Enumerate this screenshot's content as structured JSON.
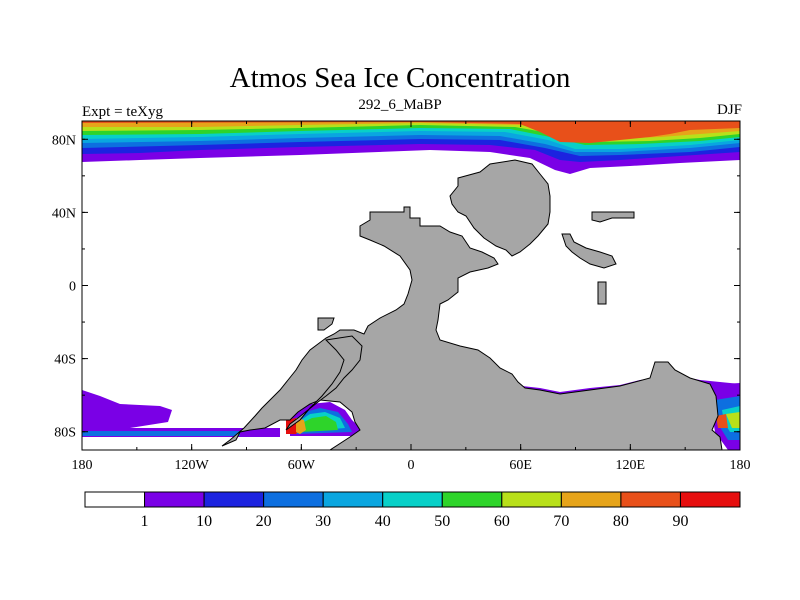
{
  "title": "Atmos Sea Ice Concentration",
  "subtitle": "292_6_MaBP",
  "left_label": "Expt = teXyg",
  "right_label": "DJF",
  "colors": {
    "land": "#a6a6a6",
    "ocean": "#ffffff"
  },
  "axes": {
    "x_ticks": [
      {
        "value": -180,
        "label": "180"
      },
      {
        "value": -120,
        "label": "120W"
      },
      {
        "value": -60,
        "label": "60W"
      },
      {
        "value": 0,
        "label": "0"
      },
      {
        "value": 60,
        "label": "60E"
      },
      {
        "value": 120,
        "label": "120E"
      },
      {
        "value": 180,
        "label": "180"
      }
    ],
    "y_ticks": [
      {
        "value": 80,
        "label": "80N"
      },
      {
        "value": 40,
        "label": "40N"
      },
      {
        "value": 0,
        "label": "0"
      },
      {
        "value": -40,
        "label": "40S"
      },
      {
        "value": -80,
        "label": "80S"
      }
    ],
    "xlim": [
      -180,
      180
    ],
    "ylim": [
      -90,
      90
    ]
  },
  "colorbar": {
    "labels": [
      "1",
      "10",
      "20",
      "30",
      "40",
      "50",
      "60",
      "70",
      "80",
      "90"
    ],
    "colors": [
      "#ffffff",
      "#7a00e6",
      "#1c23e0",
      "#0d6fe0",
      "#0aa6e0",
      "#08d0c8",
      "#2ed42a",
      "#b8e01a",
      "#e6a41a",
      "#e8501a",
      "#e60e0e"
    ]
  },
  "chart_data": {
    "type": "heatmap",
    "title": "Atmos Sea Ice Concentration",
    "subtitle": "292_6_MaBP",
    "xlim": [
      -180,
      180
    ],
    "ylim": [
      -90,
      90
    ],
    "levels": [
      1,
      10,
      20,
      30,
      40,
      50,
      60,
      70,
      80,
      90
    ]
  }
}
